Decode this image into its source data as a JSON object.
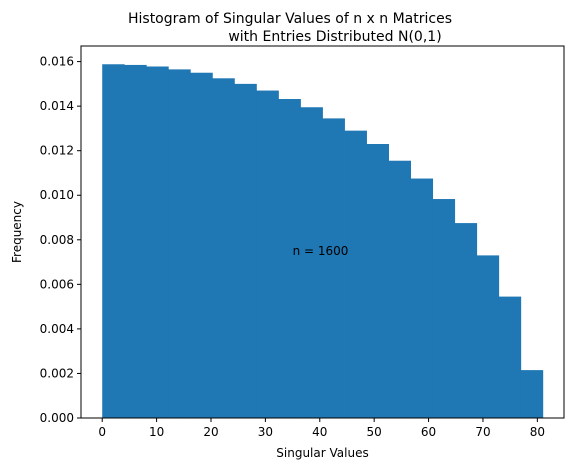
{
  "chart_data": {
    "type": "bar",
    "title": [
      "Histogram of Singular Values of n x n Matrices",
      "with Entries Distributed N(0,1)"
    ],
    "xlabel": "Singular Values",
    "ylabel": "Frequency",
    "annotation": "n = 1600",
    "color": "#1f77b4",
    "xlim": [
      -3.9,
      84.9
    ],
    "ylim": [
      0,
      0.0167
    ],
    "xticks": [
      0,
      10,
      20,
      30,
      40,
      50,
      60,
      70,
      80
    ],
    "xtick_labels": [
      "0",
      "10",
      "20",
      "30",
      "40",
      "50",
      "60",
      "70",
      "80"
    ],
    "yticks": [
      0,
      0.002,
      0.004,
      0.006,
      0.008,
      0.01,
      0.012,
      0.014,
      0.016
    ],
    "ytick_labels": [
      "0.000",
      "0.002",
      "0.004",
      "0.006",
      "0.008",
      "0.010",
      "0.012",
      "0.014",
      "0.016"
    ],
    "bin_edges": [
      0,
      4.05,
      8.1,
      12.15,
      16.2,
      20.25,
      24.3,
      28.35,
      32.4,
      36.45,
      40.5,
      44.55,
      48.6,
      52.65,
      56.7,
      60.75,
      64.8,
      68.85,
      72.9,
      76.95,
      81.0
    ],
    "values": [
      0.01588,
      0.01585,
      0.01578,
      0.01565,
      0.0155,
      0.01525,
      0.015,
      0.0147,
      0.01432,
      0.01395,
      0.01345,
      0.0129,
      0.0123,
      0.01155,
      0.01075,
      0.00983,
      0.00875,
      0.0073,
      0.00545,
      0.00215
    ],
    "grid": false
  }
}
